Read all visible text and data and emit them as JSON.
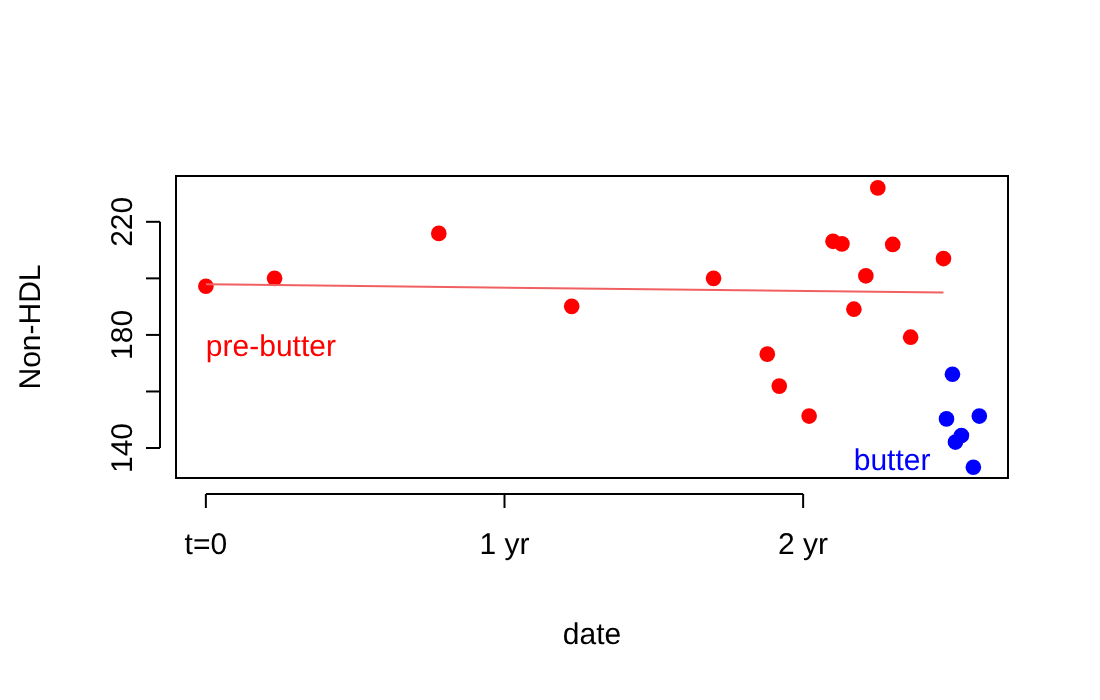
{
  "chart_data": {
    "type": "scatter",
    "xlabel": "date",
    "ylabel": "Non-HDL",
    "xlim": [
      -0.1,
      2.686
    ],
    "ylim": [
      129.4,
      236.2
    ],
    "xticks": [
      {
        "value": 0,
        "label": "t=0"
      },
      {
        "value": 1,
        "label": "1 yr"
      },
      {
        "value": 2,
        "label": "2 yr"
      }
    ],
    "yticks": [
      140,
      {
        "value": 160,
        "label": null
      },
      180,
      {
        "value": 200,
        "label": null
      },
      220
    ],
    "grid": false,
    "legend": false,
    "marker": "circle",
    "series": [
      {
        "name": "pre-butter",
        "color": "#ff0000",
        "x": [
          0,
          0.23,
          0.78,
          1.225,
          1.7,
          1.88,
          1.92,
          2.02,
          2.1,
          2.13,
          2.17,
          2.21,
          2.25,
          2.3,
          2.36,
          2.47
        ],
        "values": [
          197.2,
          200,
          215.9,
          190.1,
          200,
          173.2,
          161.9,
          151.3,
          213.1,
          212.2,
          189.1,
          200.9,
          232,
          212,
          179.2,
          207
        ]
      },
      {
        "name": "butter",
        "color": "#0000ff",
        "x": [
          2.5,
          2.48,
          2.59,
          2.53,
          2.51,
          2.57
        ],
        "values": [
          166.1,
          150.3,
          151.3,
          144.4,
          142.1,
          133.2
        ]
      },
      {
        "type": "line",
        "color": "#f06060",
        "x": [
          0,
          2.47
        ],
        "values": [
          197.9,
          195.0
        ],
        "line_style": "solid",
        "marker": "none"
      }
    ]
  }
}
